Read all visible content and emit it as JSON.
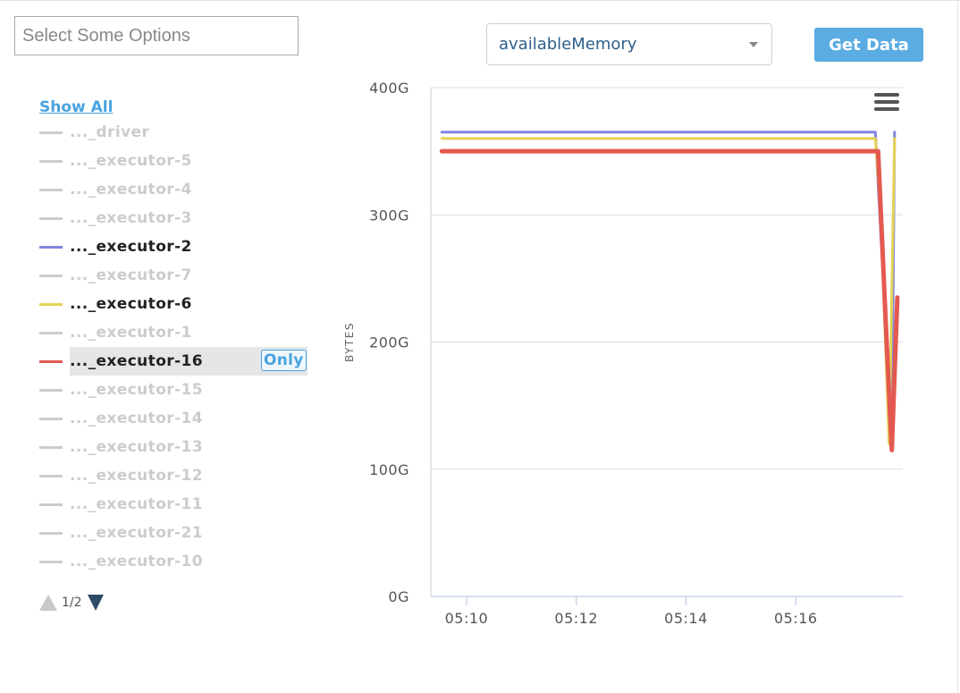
{
  "filter": {
    "placeholder": "Select Some Options"
  },
  "metric_select": {
    "value": "availableMemory"
  },
  "get_data_label": "Get Data",
  "legend": {
    "show_all_label": "Show All",
    "only_label": "Only",
    "pager_text": "1/2",
    "items": [
      {
        "label": "..._driver",
        "active": false,
        "color": "#cccccc"
      },
      {
        "label": "..._executor-5",
        "active": false,
        "color": "#cccccc"
      },
      {
        "label": "..._executor-4",
        "active": false,
        "color": "#cccccc"
      },
      {
        "label": "..._executor-3",
        "active": false,
        "color": "#cccccc"
      },
      {
        "label": "..._executor-2",
        "active": true,
        "color": "#8085e0"
      },
      {
        "label": "..._executor-7",
        "active": false,
        "color": "#cccccc"
      },
      {
        "label": "..._executor-6",
        "active": true,
        "color": "#e4d354"
      },
      {
        "label": "..._executor-1",
        "active": false,
        "color": "#cccccc"
      },
      {
        "label": "..._executor-16",
        "active": true,
        "color": "#e4594f",
        "highlighted": true
      },
      {
        "label": "..._executor-15",
        "active": false,
        "color": "#cccccc"
      },
      {
        "label": "..._executor-14",
        "active": false,
        "color": "#cccccc"
      },
      {
        "label": "..._executor-13",
        "active": false,
        "color": "#cccccc"
      },
      {
        "label": "..._executor-12",
        "active": false,
        "color": "#cccccc"
      },
      {
        "label": "..._executor-11",
        "active": false,
        "color": "#cccccc"
      },
      {
        "label": "..._executor-21",
        "active": false,
        "color": "#cccccc"
      },
      {
        "label": "..._executor-10",
        "active": false,
        "color": "#cccccc"
      }
    ]
  },
  "chart_data": {
    "type": "line",
    "ylabel": "BYTES",
    "ylim": [
      0,
      400
    ],
    "yticks": [
      "0G",
      "100G",
      "200G",
      "300G",
      "400G"
    ],
    "ytick_values": [
      0,
      100,
      200,
      300,
      400
    ],
    "xticks": [
      "05:10",
      "05:12",
      "05:14",
      "05:16"
    ],
    "xtick_minutes": [
      10,
      12,
      14,
      16
    ],
    "xlim_minutes": [
      9.35,
      17.95
    ],
    "grid": true,
    "series": [
      {
        "name": "..._executor-2",
        "color": "#8085e0",
        "width": 3,
        "points": [
          [
            9.55,
            365
          ],
          [
            17.45,
            365
          ],
          [
            17.55,
            285
          ],
          [
            17.75,
            123
          ],
          [
            17.8,
            365
          ]
        ]
      },
      {
        "name": "..._executor-6",
        "color": "#e4d354",
        "width": 3,
        "points": [
          [
            9.55,
            360
          ],
          [
            17.45,
            360
          ],
          [
            17.55,
            300
          ],
          [
            17.7,
            120
          ],
          [
            17.8,
            360
          ]
        ]
      },
      {
        "name": "..._executor-16",
        "color": "#e4594f",
        "width": 5,
        "points": [
          [
            9.55,
            350
          ],
          [
            17.5,
            350
          ],
          [
            17.65,
            205
          ],
          [
            17.75,
            115
          ],
          [
            17.85,
            235
          ]
        ]
      }
    ]
  },
  "icons": {
    "chart_menu": "hamburger-menu-icon",
    "dropdown": "chevron-down-icon",
    "page_up": "triangle-up-icon",
    "page_down": "triangle-down-icon"
  }
}
